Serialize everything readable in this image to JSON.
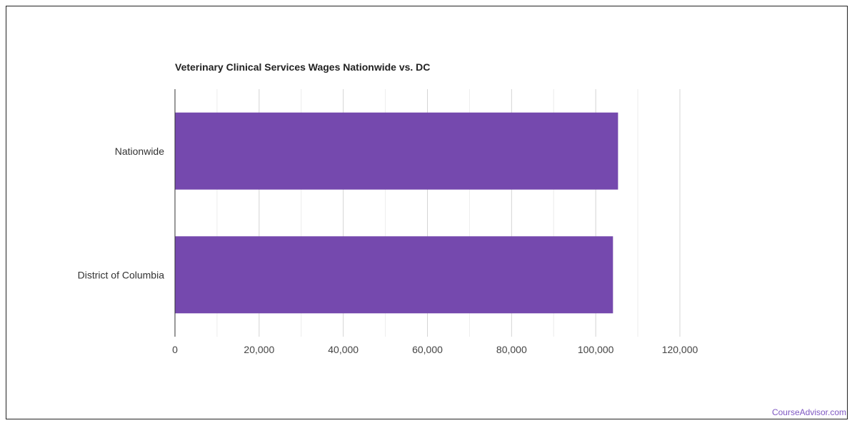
{
  "branding": {
    "watermark": "CourseAdvisor.com"
  },
  "colors": {
    "bar": "#7549ae",
    "grid": "#dddddd",
    "axis": "#333333",
    "watermark": "#7e57c2"
  },
  "chart_data": {
    "type": "bar",
    "orientation": "horizontal",
    "title": "Veterinary Clinical Services Wages Nationwide vs. DC",
    "xlabel": "",
    "ylabel": "",
    "categories": [
      "Nationwide",
      "District of Columbia"
    ],
    "values": [
      105300,
      104100
    ],
    "xlim": [
      0,
      120000
    ],
    "xticks": [
      0,
      20000,
      40000,
      60000,
      80000,
      100000,
      120000
    ],
    "xtick_labels": [
      "0",
      "20,000",
      "40,000",
      "60,000",
      "80,000",
      "100,000",
      "120,000"
    ],
    "grid": true,
    "legend": "none"
  }
}
